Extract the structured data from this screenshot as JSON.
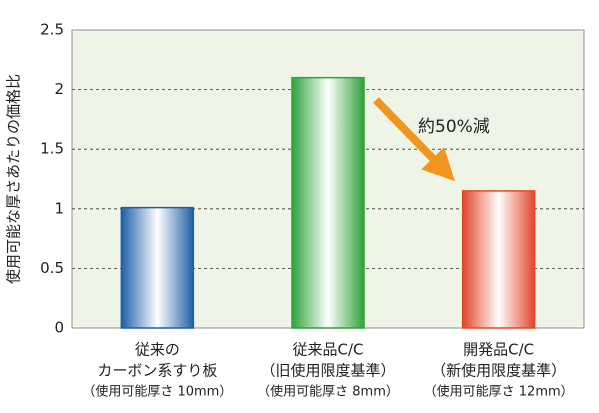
{
  "chart_data": {
    "type": "bar",
    "y_label": "使用可能な厚さあたりの価格比",
    "categories": [
      [
        "従来の",
        "カーボン系すり板",
        "（使用可能厚さ 10mm）"
      ],
      [
        "従来品C/C",
        "（旧使用限度基準）",
        "（使用可能厚さ 8mm）"
      ],
      [
        "開発品C/C",
        "（新使用限度基準）",
        "（使用可能厚さ 12mm）"
      ]
    ],
    "values": [
      1.01,
      2.1,
      1.15
    ],
    "colors": [
      "#1f5fa8",
      "#2fa23a",
      "#e2472a"
    ],
    "ylim": [
      0,
      2.5
    ],
    "yticks": [
      0,
      0.5,
      1,
      1.5,
      2,
      2.5
    ],
    "grid": true,
    "annotation": "約50%減"
  }
}
